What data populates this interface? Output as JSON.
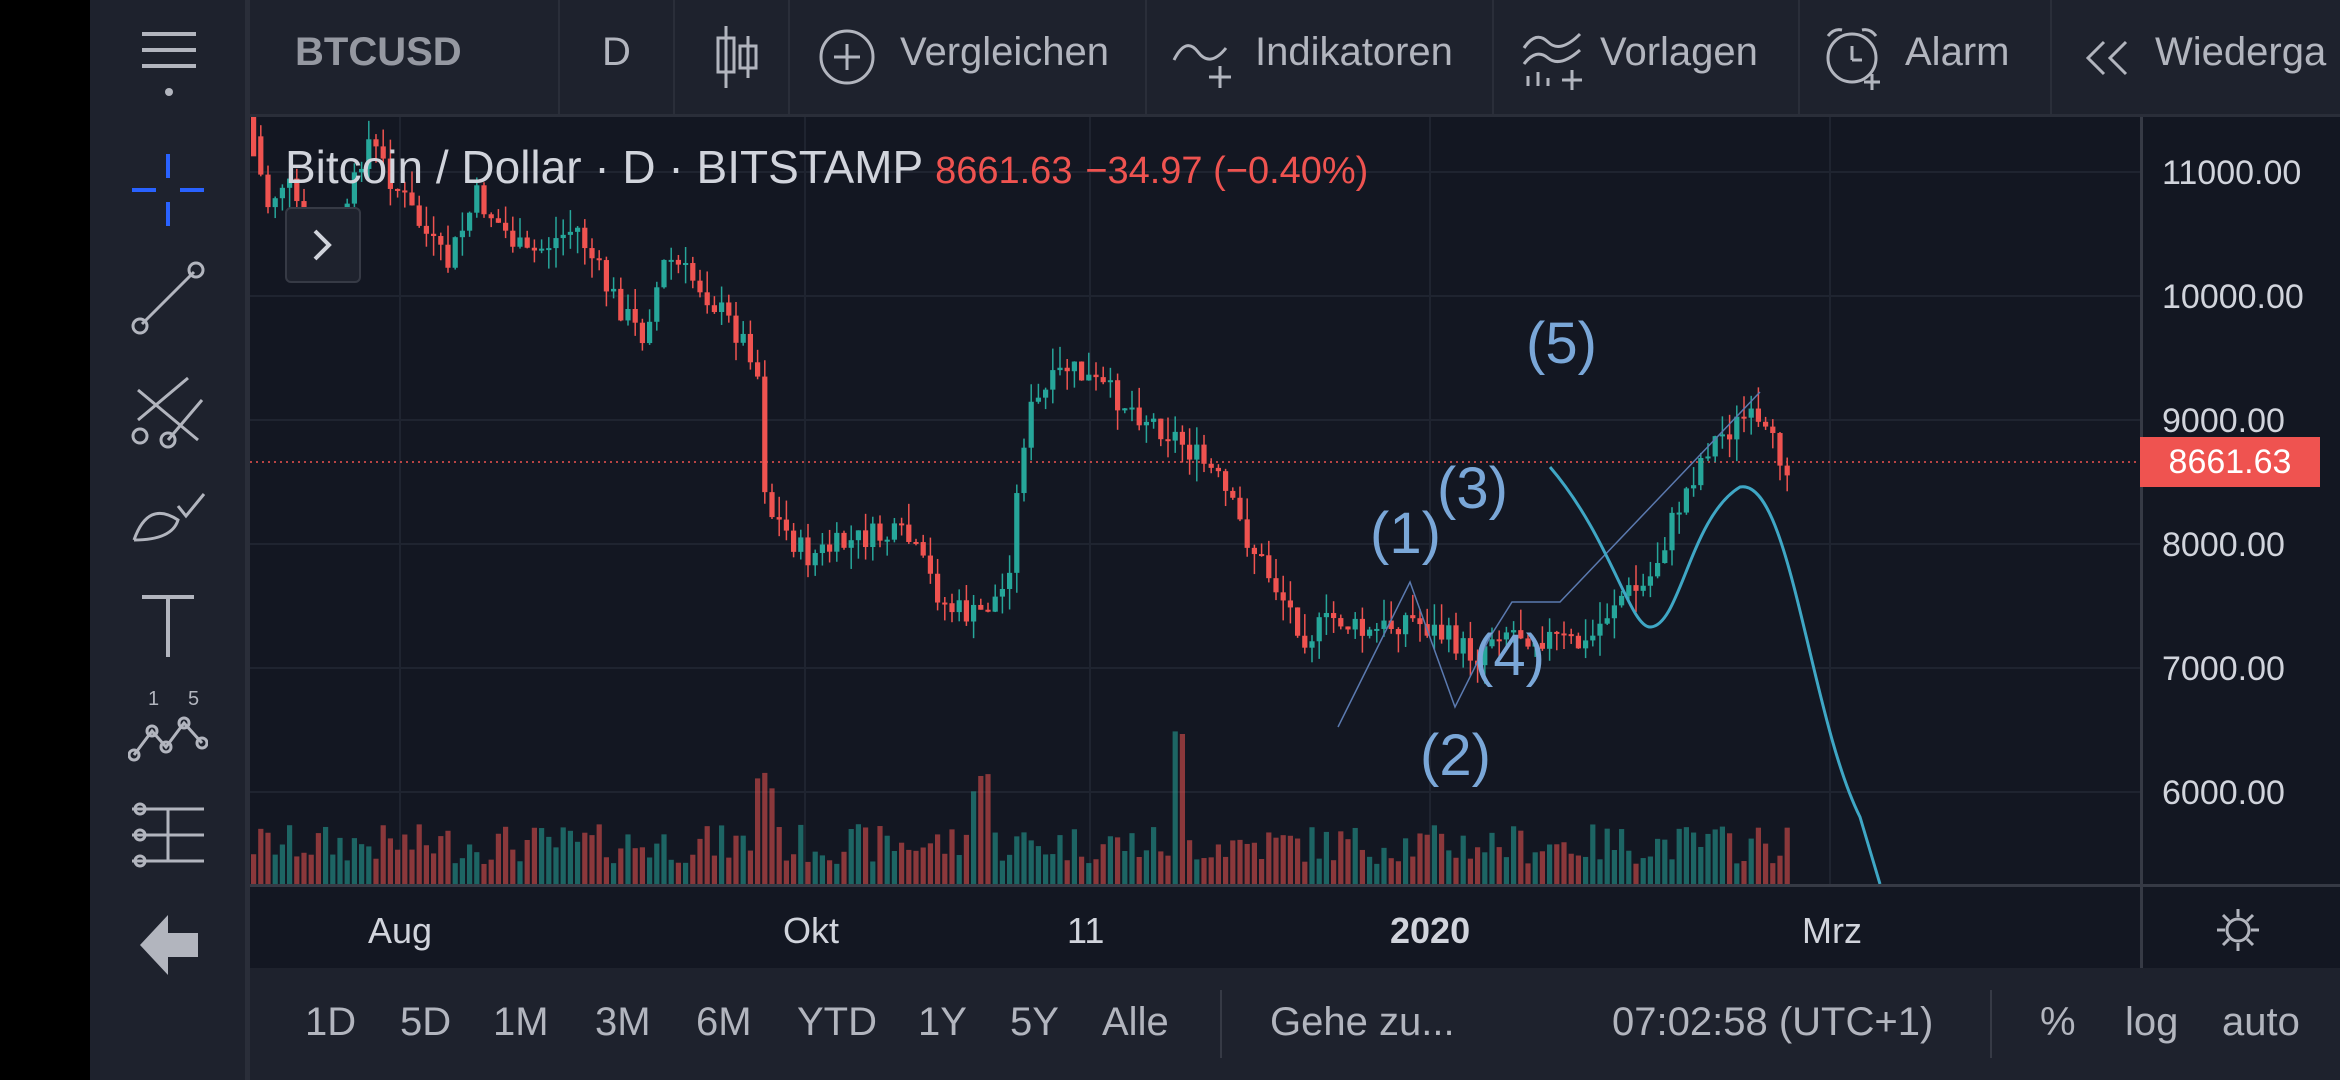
{
  "toolbar": {
    "symbol": "BTCUSD",
    "interval": "D",
    "compare": "Vergleichen",
    "indicators": "Indikatoren",
    "templates": "Vorlagen",
    "alarm": "Alarm",
    "replay": "Wiederga"
  },
  "legend": {
    "name": "Bitcoin / Dollar · D · BITSTAMP",
    "price": "8661.63",
    "change": "−34.97 (−0.40%)"
  },
  "price_axis": {
    "ticks": [
      "11000.00",
      "10000.00",
      "9000.00",
      "8000.00",
      "7000.00",
      "6000.00"
    ],
    "last_price": "8661.63"
  },
  "time_axis": {
    "ticks": [
      "Aug",
      "Okt",
      "11",
      "2020",
      "Mrz"
    ]
  },
  "waves": [
    "(1)",
    "(2)",
    "(3)",
    "(4)",
    "(5)"
  ],
  "bottom_bar": {
    "ranges": [
      "1D",
      "5D",
      "1M",
      "3M",
      "6M",
      "YTD",
      "1Y",
      "5Y",
      "Alle"
    ],
    "goto": "Gehe zu...",
    "time": "07:02:58 (UTC+1)",
    "percent": "%",
    "log": "log",
    "auto": "auto"
  },
  "colors": {
    "up": "#26a69a",
    "down": "#ef5350",
    "projection": "#3fa7c5",
    "wave_label": "#7aa7d8",
    "crosshair_tool": "#2962ff"
  },
  "icons": [
    "menu-icon",
    "crosshair-icon",
    "trend-line-icon",
    "pitchfork-icon",
    "brush-icon",
    "text-icon",
    "pattern-icon",
    "measure-icon",
    "back-arrow-icon",
    "candle-icon",
    "compare-plus-icon",
    "indicators-icon",
    "templates-icon",
    "alarm-clock-icon",
    "replay-icon",
    "settings-gear-icon",
    "expand-arrow-icon"
  ]
}
